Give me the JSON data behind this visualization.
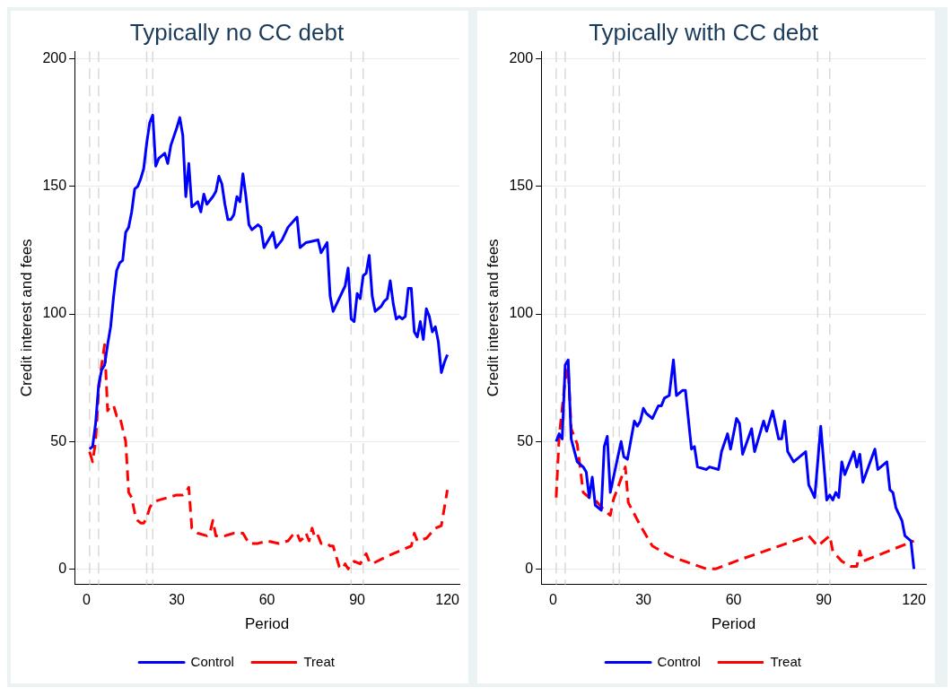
{
  "chart_data": [
    {
      "type": "line",
      "title": "Typically no CC debt",
      "xlabel": "Period",
      "ylabel": "Credit interest and fees",
      "xlim": [
        -4,
        124
      ],
      "ylim": [
        -6,
        203
      ],
      "xticks": [
        0,
        30,
        60,
        90,
        120
      ],
      "yticks": [
        0,
        50,
        100,
        150,
        200
      ],
      "grid": "y",
      "legend": "bottom",
      "marker": "none",
      "ref_lines": [
        {
          "axis": "x",
          "value": 1,
          "color": "#d9d9d9",
          "line_style": "dashed"
        },
        {
          "axis": "x",
          "value": 4,
          "color": "#d9d9d9",
          "line_style": "dashed"
        },
        {
          "axis": "x",
          "value": 20,
          "color": "#d9d9d9",
          "line_style": "dashed"
        },
        {
          "axis": "x",
          "value": 22,
          "color": "#d9d9d9",
          "line_style": "dashed"
        },
        {
          "axis": "x",
          "value": 88,
          "color": "#d9d9d9",
          "line_style": "dashed"
        },
        {
          "axis": "x",
          "value": 92,
          "color": "#d9d9d9",
          "line_style": "dashed"
        }
      ],
      "series": [
        {
          "name": "Control",
          "color": "#0000ff",
          "line_style": "solid",
          "x": [
            1,
            2,
            3,
            4,
            5,
            6,
            7,
            8,
            9,
            10,
            11,
            12,
            13,
            14,
            15,
            16,
            17,
            18,
            19,
            20,
            21,
            22,
            23,
            24,
            26,
            27,
            28,
            30,
            31,
            32,
            33,
            34,
            35,
            37,
            38,
            39,
            40,
            42,
            43,
            44,
            45,
            46,
            47,
            48,
            49,
            50,
            51,
            52,
            53,
            54,
            55,
            57,
            58,
            59,
            61,
            62,
            63,
            65,
            67,
            70,
            71,
            73,
            77,
            78,
            80,
            81,
            82,
            86,
            87,
            88,
            89,
            90,
            91,
            92,
            93,
            94,
            95,
            96,
            98,
            99,
            100,
            101,
            102,
            103,
            104,
            105,
            106,
            107,
            108,
            109,
            110,
            111,
            112,
            113,
            114,
            115,
            116,
            117,
            118,
            119,
            120
          ],
          "values": [
            47,
            48,
            57,
            72,
            78,
            80,
            88,
            95,
            107,
            117,
            120,
            121,
            132,
            134,
            140,
            149,
            150,
            153,
            157,
            167,
            175,
            178,
            158,
            161,
            163,
            159,
            166,
            173,
            177,
            170,
            146,
            159,
            142,
            144,
            140,
            147,
            143,
            146,
            148,
            154,
            151,
            143,
            137,
            137,
            139,
            146,
            144,
            155,
            146,
            135,
            133,
            135,
            134,
            126,
            130,
            132,
            126,
            129,
            134,
            138,
            126,
            128,
            129,
            124,
            128,
            107,
            101,
            111,
            118,
            98,
            97,
            108,
            106,
            115,
            116,
            123,
            107,
            101,
            103,
            105,
            106,
            113,
            104,
            98,
            99,
            98,
            99,
            110,
            110,
            93,
            91,
            97,
            90,
            102,
            99,
            93,
            95,
            89,
            77,
            81,
            84
          ]
        },
        {
          "name": "Treat",
          "color": "#ff0000",
          "line_style": "dashed",
          "x": [
            1,
            2,
            3,
            4,
            5,
            6,
            7,
            8,
            9,
            10,
            11,
            12,
            13,
            14,
            15,
            16,
            17,
            18,
            19,
            20,
            21,
            22,
            24,
            27,
            30,
            32,
            33,
            34,
            35,
            37,
            40,
            41,
            42,
            43,
            46,
            49,
            52,
            54,
            57,
            60,
            64,
            67,
            69,
            70,
            71,
            72,
            73,
            74,
            75,
            76,
            77,
            78,
            80,
            81,
            82,
            84,
            85,
            86,
            87,
            88,
            89,
            91,
            93,
            94,
            95,
            100,
            108,
            109,
            110,
            113,
            116,
            118,
            120
          ],
          "values": [
            46,
            42,
            50,
            70,
            80,
            88,
            62,
            64,
            64,
            60,
            60,
            55,
            50,
            30,
            28,
            22,
            19,
            18,
            18,
            20,
            24,
            26,
            27,
            28,
            29,
            29,
            30,
            32,
            16,
            14,
            13,
            14,
            19,
            13,
            13,
            14,
            14,
            10,
            10,
            11,
            10,
            11,
            14,
            14,
            11,
            12,
            14,
            11,
            16,
            12,
            13,
            10,
            10,
            9,
            9,
            1,
            0,
            2,
            0,
            2,
            3,
            2,
            6,
            3,
            2,
            5,
            9,
            14,
            11,
            12,
            16,
            17,
            31
          ]
        }
      ]
    },
    {
      "type": "line",
      "title": "Typically with CC debt",
      "xlabel": "Period",
      "ylabel": "Credit interest and fees",
      "xlim": [
        -4,
        124
      ],
      "ylim": [
        -6,
        203
      ],
      "xticks": [
        0,
        30,
        60,
        90,
        120
      ],
      "yticks": [
        0,
        50,
        100,
        150,
        200
      ],
      "grid": "y",
      "legend": "bottom",
      "marker": "none",
      "ref_lines": [
        {
          "axis": "x",
          "value": 1,
          "color": "#d9d9d9",
          "line_style": "dashed"
        },
        {
          "axis": "x",
          "value": 4,
          "color": "#d9d9d9",
          "line_style": "dashed"
        },
        {
          "axis": "x",
          "value": 20,
          "color": "#d9d9d9",
          "line_style": "dashed"
        },
        {
          "axis": "x",
          "value": 22,
          "color": "#d9d9d9",
          "line_style": "dashed"
        },
        {
          "axis": "x",
          "value": 88,
          "color": "#d9d9d9",
          "line_style": "dashed"
        },
        {
          "axis": "x",
          "value": 92,
          "color": "#d9d9d9",
          "line_style": "dashed"
        }
      ],
      "series": [
        {
          "name": "Control",
          "color": "#0000ff",
          "line_style": "solid",
          "x": [
            1,
            2,
            3,
            4,
            5,
            6,
            8,
            10,
            11,
            12,
            13,
            14,
            16,
            17,
            18,
            19,
            22.6,
            23.5,
            24.7,
            27,
            28,
            29,
            30,
            31,
            32,
            33,
            35,
            36,
            37,
            38.6,
            40,
            41,
            43,
            44,
            46,
            47,
            48,
            51,
            52,
            55,
            56,
            58,
            59,
            61,
            62,
            63,
            66,
            67,
            70,
            71,
            73,
            75,
            76,
            77,
            78,
            80,
            84,
            85,
            87,
            89,
            91,
            92,
            93,
            94,
            95,
            96,
            97,
            100,
            101,
            102,
            103,
            107,
            108,
            111,
            112,
            113,
            114,
            116,
            117,
            119,
            120
          ],
          "values": [
            50,
            53,
            51,
            80,
            82,
            51,
            42,
            40,
            38,
            28,
            36,
            25,
            23,
            48,
            52,
            30,
            50,
            44,
            43,
            58,
            56,
            58,
            63,
            61,
            60,
            59,
            64,
            64,
            67,
            68,
            82,
            68,
            70,
            70,
            47,
            48,
            40,
            39,
            40,
            39,
            46,
            53,
            47,
            59,
            57,
            45,
            55,
            46,
            58,
            54,
            62,
            51,
            51,
            58,
            46,
            42,
            46,
            33,
            28,
            56,
            27,
            29,
            27,
            30,
            28,
            42,
            37,
            46,
            40,
            45,
            34,
            47,
            39,
            42,
            31,
            30,
            24,
            19,
            13,
            11,
            0
          ]
        },
        {
          "name": "Treat",
          "color": "#ff0000",
          "line_style": "dashed",
          "x": [
            1,
            2,
            4,
            5,
            6,
            8,
            10,
            12,
            14,
            17,
            19,
            20,
            24,
            25,
            29,
            33,
            39,
            51,
            54,
            63,
            85,
            88,
            92,
            93,
            96,
            99,
            101,
            102,
            103,
            120
          ],
          "values": [
            28,
            52,
            74,
            79,
            55,
            49,
            30,
            28,
            27,
            23,
            21,
            27,
            40,
            26,
            17,
            9,
            5,
            0,
            0,
            4,
            13,
            9,
            13,
            7,
            3,
            1,
            1,
            7,
            3,
            11
          ]
        }
      ]
    }
  ]
}
